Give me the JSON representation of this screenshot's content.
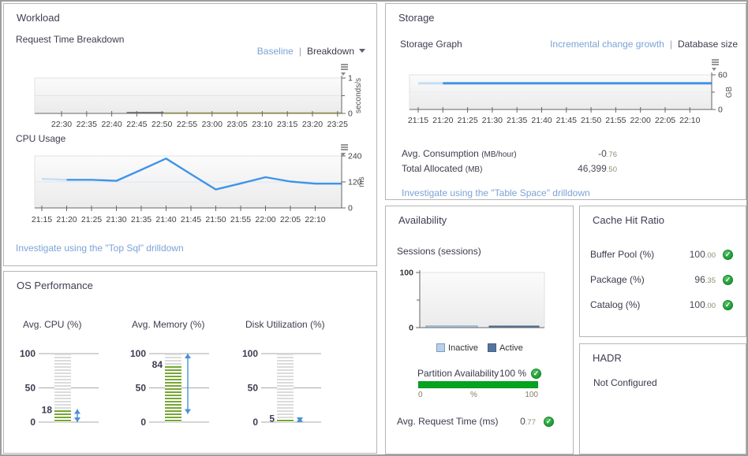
{
  "workload": {
    "title": "Workload",
    "baseline_link": "Baseline",
    "separator": "|",
    "breakdown_label": "Breakdown",
    "investigate_link": "Investigate using the \"Top Sql\" drilldown"
  },
  "storage": {
    "title": "Storage",
    "link_incremental": "Incremental change growth",
    "separator": "|",
    "link_database_size": "Database size",
    "metrics": [
      {
        "label": "Avg. Consumption",
        "unit": "(MB/hour)",
        "value_int": "-0",
        "value_frac": ".76"
      },
      {
        "label": "Total Allocated",
        "unit": "(MB)",
        "value_int": "46,399",
        "value_frac": ".50"
      }
    ],
    "investigate_link": "Investigate using the \"Table Space\" drilldown"
  },
  "os_performance": {
    "title": "OS Performance",
    "scale_ticks": [
      0,
      50,
      100
    ],
    "gauges": [
      {
        "label": "Avg. CPU (%)",
        "value": 18,
        "marker_min": 0,
        "marker_max": 19
      },
      {
        "label": "Avg. Memory (%)",
        "value": 84,
        "marker_min": 12,
        "marker_max": 100
      },
      {
        "label": "Disk Utilization (%)",
        "value": 5,
        "marker_min": 0,
        "marker_max": 7
      }
    ],
    "fill_color": "#76a733",
    "empty_color": "#dbdbdb",
    "marker_color": "#4a90d8"
  },
  "availability": {
    "title": "Availability",
    "partition": {
      "label": "Partition Availability",
      "value": "100 %",
      "bar_color": "#04a41f",
      "scale": [
        "0",
        "%",
        "100"
      ]
    },
    "request_time": {
      "label": "Avg. Request Time (ms)",
      "value_int": "0",
      "value_frac": ".77"
    }
  },
  "cache_hit_ratio": {
    "title": "Cache Hit Ratio",
    "rows": [
      {
        "label": "Buffer Pool (%)",
        "value_int": "100",
        "value_frac": ".00"
      },
      {
        "label": "Package (%)",
        "value_int": "96",
        "value_frac": ".35"
      },
      {
        "label": "Catalog (%)",
        "value_int": "100",
        "value_frac": ".00"
      }
    ]
  },
  "hadr": {
    "title": "HADR",
    "status": "Not Configured"
  },
  "chart_data": [
    {
      "id": "request_time_breakdown",
      "type": "line",
      "title": "Request Time Breakdown",
      "xlabel": "",
      "ylabel": "seconds/s",
      "ylim": [
        0,
        1
      ],
      "y_ticks": [
        0,
        1
      ],
      "x_ticks": [
        "22:30",
        "22:35",
        "22:40",
        "22:45",
        "22:50",
        "22:55",
        "23:00",
        "23:05",
        "23:10",
        "23:15",
        "23:20",
        "23:25"
      ],
      "series": [
        {
          "name": "request time (other)",
          "color": "#b9b93a",
          "flat_value": 0.012,
          "from_frac": 0.3,
          "to_frac": 1.0,
          "width": 1.6
        },
        {
          "name": "request time (cpu)",
          "color": "#7d7d7d",
          "flat_value": 0.022,
          "from_frac": 0.3,
          "to_frac": 0.42,
          "width": 2
        }
      ]
    },
    {
      "id": "cpu_usage",
      "type": "line",
      "title": "CPU Usage",
      "xlabel": "",
      "ylabel": "ms",
      "ylim": [
        0,
        240
      ],
      "y_ticks": [
        0,
        120,
        240
      ],
      "x_ticks": [
        "21:15",
        "21:20",
        "21:25",
        "21:30",
        "21:35",
        "21:40",
        "21:45",
        "21:50",
        "21:55",
        "22:00",
        "22:05",
        "22:10"
      ],
      "series": [
        {
          "name": "cpu time",
          "color": "#4094e8",
          "width": 2.4,
          "faded_head": true,
          "values": [
            134,
            130,
            130,
            125,
            176,
            228,
            156,
            85,
            113,
            142,
            122,
            112
          ],
          "end_value": 112
        }
      ]
    },
    {
      "id": "storage_graph",
      "type": "line",
      "title": "Storage Graph",
      "xlabel": "",
      "ylabel": "GB",
      "ylim": [
        0,
        60
      ],
      "y_ticks": [
        0,
        60
      ],
      "x_ticks": [
        "21:15",
        "21:20",
        "21:25",
        "21:30",
        "21:35",
        "21:40",
        "21:45",
        "21:50",
        "21:55",
        "22:00",
        "22:05",
        "22:10"
      ],
      "series": [
        {
          "name": "database size",
          "color": "#4094e8",
          "width": 3,
          "faded_head": true,
          "values": [
            45.3,
            45.3,
            45.3,
            45.3,
            45.3,
            45.3,
            45.3,
            45.3,
            45.3,
            45.3,
            45.3,
            45.3
          ],
          "end_value": 45.3
        }
      ]
    },
    {
      "id": "sessions",
      "type": "bar",
      "title": "Sessions (sessions)",
      "xlabel": "",
      "ylabel": "",
      "ylim": [
        0,
        100
      ],
      "y_ticks": [
        0,
        100
      ],
      "legend_position": "bottom",
      "series": [
        {
          "name": "Inactive",
          "color": "#b9d0e8",
          "border": "#7e9cc0",
          "value": 3
        },
        {
          "name": "Active",
          "color": "#56749b",
          "border": "#44628a",
          "value": 2
        }
      ]
    }
  ]
}
